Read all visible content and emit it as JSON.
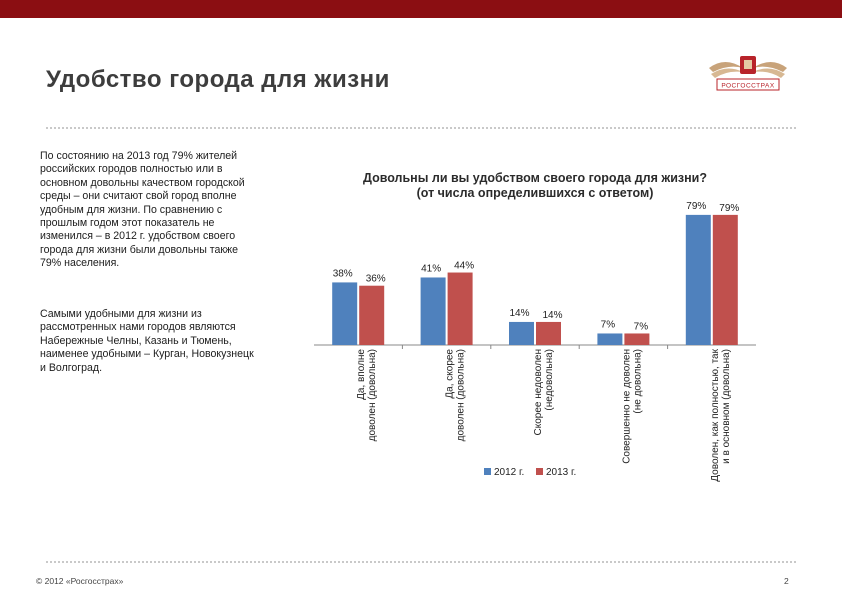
{
  "header": {
    "title": "Удобство города для жизни",
    "brand_label": "РОСГОССТРАХ",
    "bar_color": "#8b0e12"
  },
  "text": {
    "paragraph1": "По состоянию на 2013 год 79% жителей российских городов полностью или в основном довольны качеством городской среды – они считают свой город вполне удобным для жизни. По сравнению с прошлым годом этот показатель не изменился – в 2012 г. удобством своего города для жизни были довольны также 79% населения.",
    "paragraph2": "Самыми удобными для жизни из рассмотренных нами городов являются Набережные Челны, Казань и Тюмень, наименее удобными – Курган, Новокузнецк и Волгоград."
  },
  "chart_data": {
    "type": "bar",
    "title": "Довольны ли вы удобством своего города для жизни? (от числа определившихся с ответом)",
    "categories": [
      "Да, вполне доволен (довольна)",
      "Да, скорее доволен (довольна)",
      "Скорее недоволен (недовольна)",
      "Совершенно не доволен (не довольна)",
      "Доволен, как полностью, так и в основном (довольна)"
    ],
    "series": [
      {
        "name": "2012 г.",
        "values": [
          38,
          41,
          14,
          7,
          79
        ],
        "color": "#4f81bd"
      },
      {
        "name": "2013 г.",
        "values": [
          36,
          44,
          14,
          7,
          79
        ],
        "color": "#c0504d"
      }
    ],
    "data_labels": [
      [
        "38%",
        "41%",
        "14%",
        "7%",
        "79%"
      ],
      [
        "36%",
        "44%",
        "14%",
        "7%",
        "79%"
      ]
    ],
    "ylim": [
      0,
      85
    ],
    "legend": "bottom",
    "grid": false
  },
  "footer": {
    "copyright": "© 2012 «Росгосстрах»",
    "page": "2"
  }
}
